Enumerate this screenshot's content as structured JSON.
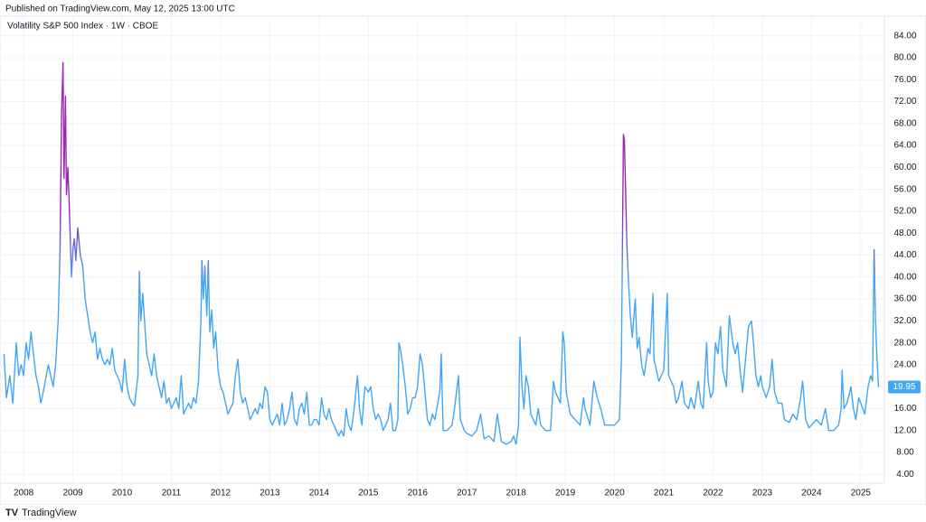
{
  "header": {
    "published": "Published on TradingView.com, May 12, 2025 13:00 UTC",
    "brand": "TradingView"
  },
  "chart_data": {
    "type": "line",
    "title": "Volatility S&P 500 Index · 1W · CBOE",
    "last_value_label": "19.95",
    "color": "#42a5f5",
    "color_high": "#9c27b0",
    "grid": true,
    "xlim": [
      2007.52,
      2025.48
    ],
    "xticks": [
      2008,
      2009,
      2010,
      2011,
      2012,
      2013,
      2014,
      2015,
      2016,
      2017,
      2018,
      2019,
      2020,
      2021,
      2022,
      2023,
      2024,
      2025
    ],
    "ylim": [
      2.4,
      85.6
    ],
    "yticks": [
      {
        "value": 4,
        "label": "4.00"
      },
      {
        "value": 8,
        "label": "8.00"
      },
      {
        "value": 12,
        "label": "12.00"
      },
      {
        "value": 16,
        "label": "16.00"
      },
      {
        "value": 20,
        "label": "20.00"
      },
      {
        "value": 24,
        "label": "24.00"
      },
      {
        "value": 28,
        "label": "28.00"
      },
      {
        "value": 32,
        "label": "32.00"
      },
      {
        "value": 36,
        "label": "36.00"
      },
      {
        "value": 40,
        "label": "40.00"
      },
      {
        "value": 44,
        "label": "44.00"
      },
      {
        "value": 48,
        "label": "48.00"
      },
      {
        "value": 52,
        "label": "52.00"
      },
      {
        "value": 56,
        "label": "56.00"
      },
      {
        "value": 60,
        "label": "60.00"
      },
      {
        "value": 64,
        "label": "64.00"
      },
      {
        "value": 68,
        "label": "68.00"
      },
      {
        "value": 72,
        "label": "72.00"
      },
      {
        "value": 76,
        "label": "76.00"
      },
      {
        "value": 80,
        "label": "80.00"
      },
      {
        "value": 84,
        "label": "84.00"
      }
    ],
    "x": [
      2007.6,
      2007.65,
      2007.72,
      2007.78,
      2007.85,
      2007.9,
      2007.95,
      2008.0,
      2008.05,
      2008.1,
      2008.15,
      2008.2,
      2008.25,
      2008.3,
      2008.35,
      2008.42,
      2008.5,
      2008.55,
      2008.6,
      2008.65,
      2008.7,
      2008.74,
      2008.77,
      2008.8,
      2008.82,
      2008.85,
      2008.87,
      2008.9,
      2008.93,
      2008.97,
      2009.0,
      2009.03,
      2009.06,
      2009.1,
      2009.15,
      2009.2,
      2009.25,
      2009.3,
      2009.35,
      2009.4,
      2009.45,
      2009.5,
      2009.55,
      2009.6,
      2009.65,
      2009.7,
      2009.75,
      2009.8,
      2009.85,
      2009.9,
      2009.95,
      2010.0,
      2010.05,
      2010.1,
      2010.15,
      2010.2,
      2010.25,
      2010.32,
      2010.35,
      2010.38,
      2010.42,
      2010.47,
      2010.5,
      2010.55,
      2010.6,
      2010.65,
      2010.7,
      2010.75,
      2010.8,
      2010.85,
      2010.9,
      2010.95,
      2011.0,
      2011.05,
      2011.1,
      2011.15,
      2011.2,
      2011.25,
      2011.3,
      2011.35,
      2011.4,
      2011.45,
      2011.5,
      2011.55,
      2011.6,
      2011.62,
      2011.65,
      2011.68,
      2011.72,
      2011.75,
      2011.78,
      2011.82,
      2011.86,
      2011.9,
      2011.95,
      2012.0,
      2012.05,
      2012.1,
      2012.15,
      2012.2,
      2012.25,
      2012.3,
      2012.35,
      2012.4,
      2012.45,
      2012.5,
      2012.55,
      2012.6,
      2012.65,
      2012.7,
      2012.75,
      2012.8,
      2012.85,
      2012.9,
      2012.95,
      2013.0,
      2013.05,
      2013.1,
      2013.15,
      2013.2,
      2013.25,
      2013.3,
      2013.35,
      2013.4,
      2013.45,
      2013.5,
      2013.55,
      2013.6,
      2013.65,
      2013.7,
      2013.75,
      2013.8,
      2013.85,
      2013.9,
      2013.95,
      2014.0,
      2014.05,
      2014.1,
      2014.15,
      2014.2,
      2014.25,
      2014.3,
      2014.35,
      2014.4,
      2014.45,
      2014.5,
      2014.55,
      2014.6,
      2014.65,
      2014.7,
      2014.78,
      2014.82,
      2014.87,
      2014.93,
      2015.0,
      2015.05,
      2015.1,
      2015.15,
      2015.2,
      2015.25,
      2015.3,
      2015.35,
      2015.4,
      2015.45,
      2015.5,
      2015.55,
      2015.6,
      2015.62,
      2015.65,
      2015.7,
      2015.75,
      2015.8,
      2015.85,
      2015.9,
      2015.95,
      2016.0,
      2016.05,
      2016.1,
      2016.15,
      2016.2,
      2016.25,
      2016.3,
      2016.35,
      2016.45,
      2016.48,
      2016.52,
      2016.6,
      2016.7,
      2016.75,
      2016.83,
      2016.87,
      2016.95,
      2017.0,
      2017.1,
      2017.2,
      2017.28,
      2017.35,
      2017.45,
      2017.55,
      2017.62,
      2017.7,
      2017.8,
      2017.9,
      2017.95,
      2018.0,
      2018.05,
      2018.08,
      2018.12,
      2018.16,
      2018.2,
      2018.25,
      2018.3,
      2018.4,
      2018.45,
      2018.5,
      2018.6,
      2018.7,
      2018.76,
      2018.8,
      2018.85,
      2018.9,
      2018.95,
      2018.98,
      2019.02,
      2019.1,
      2019.2,
      2019.3,
      2019.37,
      2019.4,
      2019.5,
      2019.58,
      2019.65,
      2019.72,
      2019.8,
      2019.9,
      2020.0,
      2020.1,
      2020.14,
      2020.18,
      2020.2,
      2020.25,
      2020.28,
      2020.32,
      2020.36,
      2020.42,
      2020.46,
      2020.5,
      2020.55,
      2020.6,
      2020.68,
      2020.72,
      2020.78,
      2020.8,
      2020.85,
      2020.9,
      2020.95,
      2021.0,
      2021.07,
      2021.1,
      2021.15,
      2021.2,
      2021.25,
      2021.3,
      2021.37,
      2021.42,
      2021.5,
      2021.55,
      2021.62,
      2021.7,
      2021.75,
      2021.8,
      2021.87,
      2021.9,
      2021.95,
      2022.0,
      2022.05,
      2022.1,
      2022.15,
      2022.2,
      2022.27,
      2022.33,
      2022.4,
      2022.45,
      2022.5,
      2022.55,
      2022.6,
      2022.65,
      2022.72,
      2022.78,
      2022.82,
      2022.87,
      2022.92,
      2022.97,
      2023.0,
      2023.08,
      2023.15,
      2023.2,
      2023.25,
      2023.32,
      2023.4,
      2023.45,
      2023.55,
      2023.62,
      2023.7,
      2023.78,
      2023.82,
      2023.88,
      2023.95,
      2024.0,
      2024.1,
      2024.2,
      2024.28,
      2024.35,
      2024.45,
      2024.55,
      2024.6,
      2024.62,
      2024.66,
      2024.72,
      2024.8,
      2024.85,
      2024.9,
      2024.96,
      2025.0,
      2025.08,
      2025.15,
      2025.2,
      2025.24,
      2025.27,
      2025.3,
      2025.33,
      2025.36
    ],
    "values": [
      26,
      18,
      22,
      17,
      28,
      22,
      24,
      22,
      28,
      25,
      30,
      26,
      22,
      20,
      17,
      20,
      24,
      22,
      20,
      24,
      32,
      45,
      70,
      79.1,
      58,
      73,
      55,
      60,
      52,
      40,
      45,
      47,
      43,
      49,
      44,
      42,
      36,
      33,
      30,
      28,
      30,
      25,
      27,
      25,
      24,
      25,
      24,
      27,
      23,
      22,
      21,
      19,
      25,
      20,
      18,
      17,
      16.5,
      22,
      41,
      32,
      37,
      30,
      26,
      24,
      22,
      26,
      22,
      20,
      18,
      21,
      17,
      18,
      16,
      17,
      18,
      16,
      22,
      15,
      16,
      17,
      16,
      18,
      17,
      21,
      32,
      43,
      36,
      42,
      33,
      43,
      30,
      34,
      27,
      30,
      23,
      20,
      19,
      17,
      15,
      16,
      17,
      22,
      25,
      19,
      17,
      18,
      16,
      14,
      15,
      16,
      15,
      17,
      16,
      20,
      19,
      14,
      13,
      14,
      15,
      13,
      17,
      13,
      14,
      16,
      19,
      14,
      13,
      16,
      17,
      15,
      19,
      13,
      13,
      14,
      14,
      13,
      18,
      15,
      14,
      16,
      14,
      13,
      12,
      11,
      12,
      11,
      16,
      13,
      12,
      15,
      22,
      16,
      13,
      20,
      19,
      20,
      16,
      14,
      15,
      14,
      12,
      13,
      14,
      17,
      12,
      12,
      14,
      28,
      27,
      24,
      20,
      15,
      16,
      18,
      18,
      20,
      26,
      24,
      19,
      14,
      13,
      15,
      14,
      19,
      26,
      12,
      12,
      13,
      16,
      22,
      14,
      12,
      11.5,
      11,
      12,
      15,
      10.5,
      11,
      10,
      15,
      10,
      9.5,
      10,
      11,
      9.5,
      13,
      29,
      20,
      16,
      22,
      20,
      15,
      13,
      16,
      13,
      12,
      12,
      21,
      19,
      18,
      17,
      30,
      28,
      19,
      15,
      14,
      13,
      18,
      16,
      13,
      21,
      18,
      16,
      13,
      13,
      13,
      14,
      25,
      66,
      65,
      46,
      40,
      33,
      29,
      36,
      27,
      29,
      24,
      22,
      27,
      26,
      37,
      25,
      23,
      21,
      22,
      23,
      37,
      22,
      21,
      20,
      17,
      18,
      21,
      17,
      16,
      18,
      16,
      21,
      17,
      16,
      28,
      21,
      18,
      19,
      28,
      26,
      31,
      23,
      20,
      33,
      28,
      26,
      28,
      23,
      19,
      24,
      31,
      32,
      28,
      22,
      20,
      22,
      20,
      18,
      20,
      25,
      19,
      17,
      17,
      14,
      13.5,
      15,
      14,
      18,
      21,
      14,
      12.5,
      13,
      14,
      13,
      16,
      12,
      12,
      13,
      16,
      23,
      16,
      17,
      20,
      16,
      14,
      18,
      17,
      15,
      20,
      22,
      21,
      45,
      32,
      25,
      19.95
    ]
  }
}
